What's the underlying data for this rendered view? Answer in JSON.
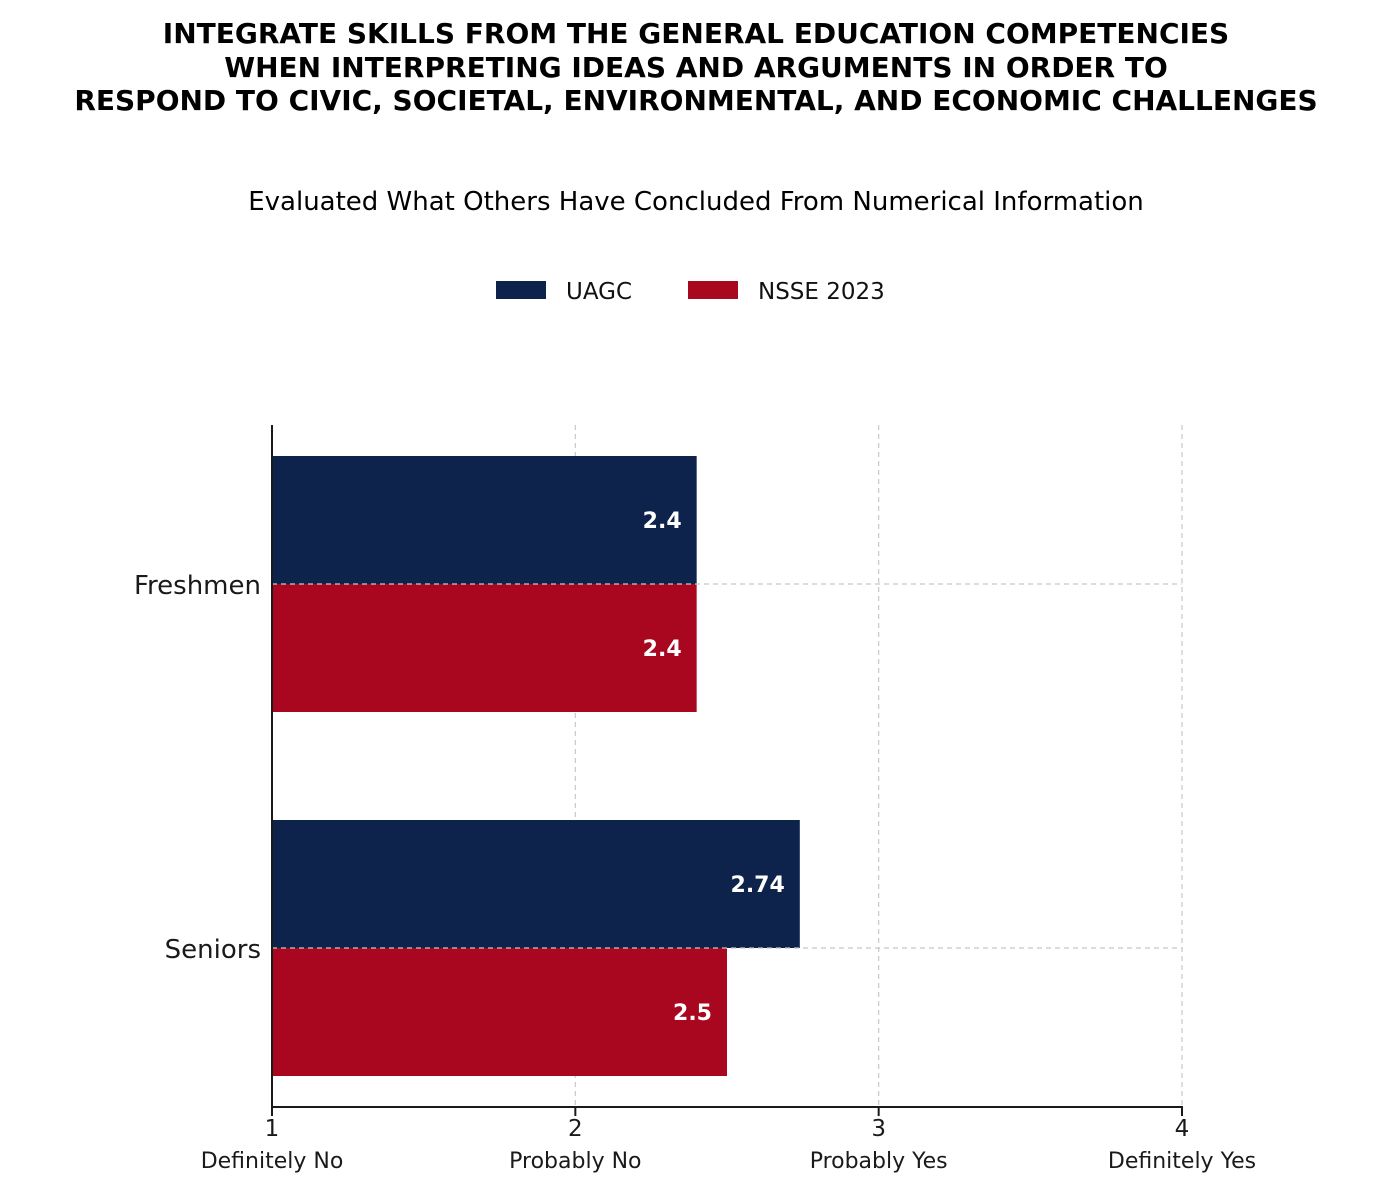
{
  "chart_data": {
    "type": "bar",
    "orientation": "horizontal",
    "title_lines": [
      "INTEGRATE SKILLS FROM THE GENERAL EDUCATION COMPETENCIES",
      "WHEN INTERPRETING IDEAS AND ARGUMENTS IN ORDER TO",
      "RESPOND TO CIVIC, SOCIETAL, ENVIRONMENTAL, AND ECONOMIC CHALLENGES"
    ],
    "subtitle": "Evaluated What Others Have Concluded From Numerical Information",
    "categories": [
      "Freshmen",
      "Seniors"
    ],
    "series": [
      {
        "name": "UAGC",
        "color": "#0d234b",
        "values": [
          2.4,
          2.74
        ],
        "labels": [
          "2.4",
          "2.74"
        ]
      },
      {
        "name": "NSSE 2023",
        "color": "#a90720",
        "values": [
          2.4,
          2.5
        ],
        "labels": [
          "2.4",
          "2.5"
        ]
      }
    ],
    "xlim": [
      1,
      4
    ],
    "xticks": [
      {
        "value": 1,
        "number": "1",
        "word": "Definitely No"
      },
      {
        "value": 2,
        "number": "2",
        "word": "Probably No"
      },
      {
        "value": 3,
        "number": "3",
        "word": "Probably Yes"
      },
      {
        "value": 4,
        "number": "4",
        "word": "Definitely Yes"
      }
    ],
    "grid": true,
    "legend": "top-center"
  }
}
